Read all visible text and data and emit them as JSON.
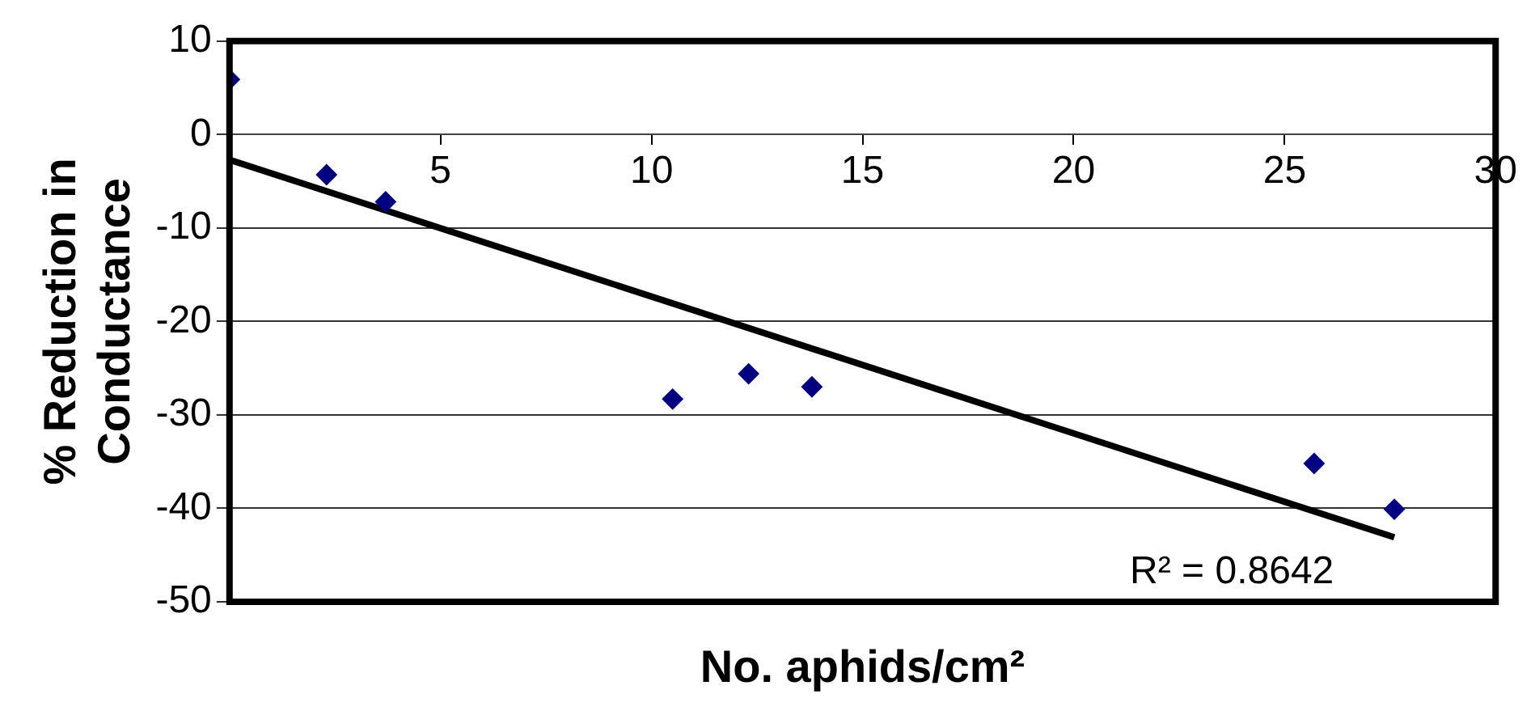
{
  "chart_data": {
    "type": "scatter",
    "xlabel": "No. aphids/cm²",
    "ylabel": "% Reduction in Conductance",
    "annotations": [
      "R² = 0.8642"
    ],
    "xlim": [
      0,
      30
    ],
    "xticks": [
      5,
      10,
      15,
      20,
      25,
      30
    ],
    "ylim": [
      -50,
      10
    ],
    "yticks": [
      -50,
      -40,
      -30,
      -20,
      -10,
      0,
      10
    ],
    "grid": "y",
    "legend": false,
    "series": [
      {
        "type": "scatter",
        "color": "#000080",
        "marker": "diamond",
        "x": [
          0,
          2.3,
          3.7,
          10.5,
          12.3,
          13.8,
          25.7,
          27.6
        ],
        "values": [
          5.9,
          -4.3,
          -7.2,
          -28.3,
          -25.6,
          -27.0,
          -35.2,
          -40.1
        ]
      },
      {
        "type": "line",
        "color": "#000000",
        "marker": "none",
        "line_style": "solid",
        "x": [
          0,
          27.6
        ],
        "values": [
          -2.7,
          -43.1
        ]
      }
    ]
  }
}
